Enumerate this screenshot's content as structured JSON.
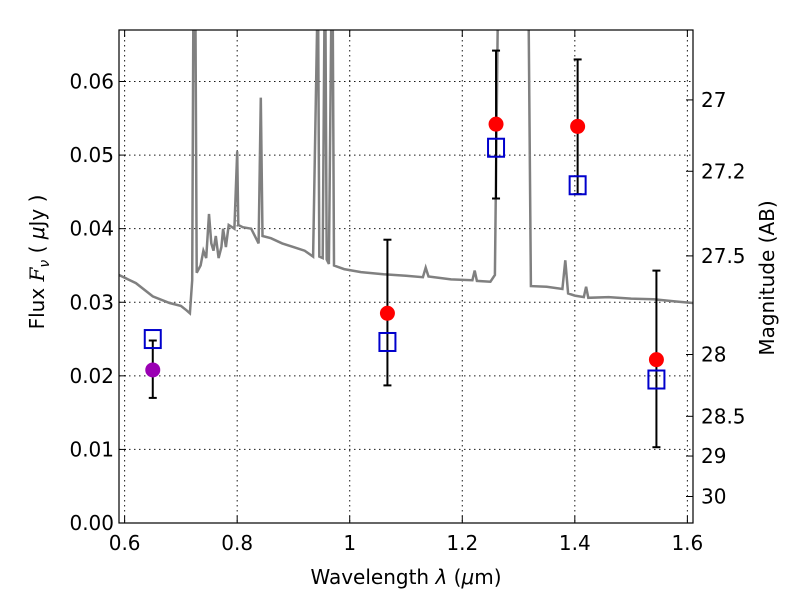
{
  "chart_data": {
    "type": "scatter",
    "xlabel_prefix": "Wavelength  ",
    "xlabel_symbol": "λ",
    "xlabel_suffix": " (",
    "xlabel_unit_mu": "μ",
    "xlabel_unit_tail": "m)",
    "ylabel_prefix": "Flux  ",
    "ylabel_symbol": "F",
    "ylabel_sub": "ν",
    "ylabel_paren_open": "  ( ",
    "ylabel_unit_mu": "μ",
    "ylabel_unit_tail": "Jy )",
    "y2label": "Magnitude (AB)",
    "xlim": [
      0.59,
      1.61
    ],
    "ylim": [
      0.0,
      0.067
    ],
    "x_ticks": [
      0.6,
      0.8,
      1.0,
      1.2,
      1.4,
      1.6
    ],
    "x_tick_labels": [
      "0.6",
      "0.8",
      "1",
      "1.2",
      "1.4",
      "1.6"
    ],
    "y_ticks": [
      0.0,
      0.01,
      0.02,
      0.03,
      0.04,
      0.05,
      0.06
    ],
    "y_tick_labels": [
      "0.00",
      "0.01",
      "0.02",
      "0.03",
      "0.04",
      "0.05",
      "0.06"
    ],
    "y2_ticks": [
      {
        "label": "27",
        "flux": 0.0575
      },
      {
        "label": "27.2",
        "flux": 0.0478
      },
      {
        "label": "27.5",
        "flux": 0.0363
      },
      {
        "label": "28",
        "flux": 0.0229
      },
      {
        "label": "28.5",
        "flux": 0.0145
      },
      {
        "label": "29",
        "flux": 0.0091
      },
      {
        "label": "30",
        "flux": 0.0036
      }
    ],
    "observed": [
      {
        "x": 0.65,
        "y": 0.0208,
        "err": [
          0.017,
          0.0248
        ],
        "color": "#9b00b4"
      },
      {
        "x": 1.067,
        "y": 0.0285,
        "err": [
          0.0187,
          0.0385
        ],
        "color": "#ff0000"
      },
      {
        "x": 1.26,
        "y": 0.0542,
        "err": [
          0.0441,
          0.0642
        ],
        "color": "#ff0000"
      },
      {
        "x": 1.405,
        "y": 0.0539,
        "err": [
          0.0447,
          0.063
        ],
        "color": "#ff0000"
      },
      {
        "x": 1.545,
        "y": 0.0222,
        "err": [
          0.0103,
          0.0343
        ],
        "color": "#ff0000"
      }
    ],
    "model_photometry": [
      {
        "x": 0.65,
        "y": 0.025
      },
      {
        "x": 1.067,
        "y": 0.0246
      },
      {
        "x": 1.26,
        "y": 0.051
      },
      {
        "x": 1.405,
        "y": 0.0459
      },
      {
        "x": 1.545,
        "y": 0.0195
      }
    ],
    "model_spectrum": [
      [
        0.59,
        0.0337
      ],
      [
        0.62,
        0.0326
      ],
      [
        0.65,
        0.0308
      ],
      [
        0.68,
        0.0299
      ],
      [
        0.7,
        0.0295
      ],
      [
        0.71,
        0.0289
      ],
      [
        0.716,
        0.0285
      ],
      [
        0.72,
        0.033
      ],
      [
        0.722,
        0.07
      ],
      [
        0.726,
        0.07
      ],
      [
        0.728,
        0.034
      ],
      [
        0.735,
        0.035
      ],
      [
        0.74,
        0.037
      ],
      [
        0.745,
        0.036
      ],
      [
        0.75,
        0.042
      ],
      [
        0.754,
        0.038
      ],
      [
        0.758,
        0.037
      ],
      [
        0.762,
        0.039
      ],
      [
        0.767,
        0.036
      ],
      [
        0.772,
        0.0375
      ],
      [
        0.775,
        0.04
      ],
      [
        0.78,
        0.0375
      ],
      [
        0.785,
        0.0405
      ],
      [
        0.795,
        0.04
      ],
      [
        0.8,
        0.0505
      ],
      [
        0.802,
        0.0405
      ],
      [
        0.81,
        0.0402
      ],
      [
        0.825,
        0.04
      ],
      [
        0.838,
        0.038
      ],
      [
        0.842,
        0.0578
      ],
      [
        0.845,
        0.039
      ],
      [
        0.86,
        0.0387
      ],
      [
        0.88,
        0.038
      ],
      [
        0.9,
        0.0375
      ],
      [
        0.92,
        0.037
      ],
      [
        0.935,
        0.0362
      ],
      [
        0.942,
        0.07
      ],
      [
        0.944,
        0.07
      ],
      [
        0.946,
        0.0362
      ],
      [
        0.952,
        0.036
      ],
      [
        0.955,
        0.07
      ],
      [
        0.957,
        0.07
      ],
      [
        0.959,
        0.0358
      ],
      [
        0.963,
        0.0352
      ],
      [
        0.967,
        0.07
      ],
      [
        0.97,
        0.07
      ],
      [
        0.972,
        0.035
      ],
      [
        0.99,
        0.0345
      ],
      [
        1.02,
        0.0341
      ],
      [
        1.06,
        0.0338
      ],
      [
        1.1,
        0.0336
      ],
      [
        1.13,
        0.0334
      ],
      [
        1.135,
        0.0347
      ],
      [
        1.14,
        0.0335
      ],
      [
        1.18,
        0.0331
      ],
      [
        1.218,
        0.033
      ],
      [
        1.222,
        0.0343
      ],
      [
        1.226,
        0.0329
      ],
      [
        1.25,
        0.0328
      ],
      [
        1.258,
        0.0337
      ],
      [
        1.263,
        0.07
      ],
      [
        1.318,
        0.07
      ],
      [
        1.322,
        0.0322
      ],
      [
        1.35,
        0.0321
      ],
      [
        1.378,
        0.0318
      ],
      [
        1.383,
        0.0357
      ],
      [
        1.388,
        0.0312
      ],
      [
        1.4,
        0.0309
      ],
      [
        1.416,
        0.0307
      ],
      [
        1.42,
        0.0321
      ],
      [
        1.424,
        0.0306
      ],
      [
        1.46,
        0.0307
      ],
      [
        1.5,
        0.0305
      ],
      [
        1.54,
        0.0304
      ],
      [
        1.58,
        0.0301
      ],
      [
        1.61,
        0.0299
      ]
    ]
  }
}
